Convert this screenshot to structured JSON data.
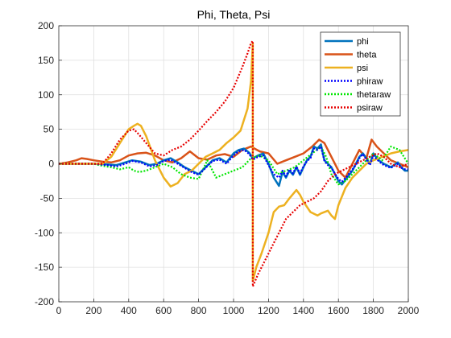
{
  "chart_data": {
    "type": "line",
    "title": "Phi, Theta, Psi",
    "xlabel": "",
    "ylabel": "",
    "xlim": [
      0,
      2000
    ],
    "ylim": [
      -200,
      200
    ],
    "xticks": [
      0,
      200,
      400,
      600,
      800,
      1000,
      1200,
      1400,
      1600,
      1800,
      2000
    ],
    "yticks": [
      -200,
      -150,
      -100,
      -50,
      0,
      50,
      100,
      150,
      200
    ],
    "grid": true,
    "legend_position": "top-right",
    "series": [
      {
        "name": "phi",
        "color": "#0072BD",
        "style": "solid",
        "x": [
          0,
          200,
          280,
          330,
          380,
          420,
          470,
          520,
          560,
          600,
          640,
          680,
          720,
          760,
          800,
          840,
          880,
          920,
          960,
          1000,
          1030,
          1060,
          1090,
          1110,
          1140,
          1170,
          1200,
          1230,
          1260,
          1280,
          1300,
          1320,
          1340,
          1360,
          1380,
          1400,
          1420,
          1440,
          1460,
          1480,
          1500,
          1520,
          1540,
          1560,
          1580,
          1600,
          1620,
          1650,
          1680,
          1700,
          1720,
          1740,
          1760,
          1780,
          1800,
          1830,
          1860,
          1900,
          1940,
          1960,
          1980,
          2000
        ],
        "y": [
          0,
          0,
          -1,
          -2,
          2,
          5,
          3,
          -2,
          0,
          5,
          8,
          2,
          -5,
          -10,
          -15,
          -5,
          5,
          8,
          2,
          15,
          20,
          22,
          16,
          8,
          12,
          15,
          0,
          -20,
          -32,
          -12,
          -20,
          -10,
          -16,
          -5,
          -16,
          -5,
          5,
          10,
          25,
          22,
          28,
          5,
          0,
          -5,
          -15,
          -25,
          -30,
          -20,
          -10,
          0,
          10,
          15,
          8,
          0,
          15,
          5,
          0,
          -5,
          2,
          -5,
          -10,
          -10
        ]
      },
      {
        "name": "theta",
        "color": "#D95319",
        "style": "solid",
        "x": [
          0,
          50,
          100,
          130,
          160,
          200,
          250,
          300,
          350,
          400,
          450,
          500,
          550,
          600,
          650,
          700,
          750,
          800,
          850,
          900,
          950,
          1000,
          1050,
          1100,
          1120,
          1150,
          1200,
          1250,
          1300,
          1350,
          1400,
          1450,
          1490,
          1520,
          1560,
          1600,
          1640,
          1680,
          1720,
          1760,
          1790,
          1820,
          1860,
          1900,
          1950,
          2000
        ],
        "y": [
          0,
          2,
          5,
          8,
          7,
          5,
          3,
          2,
          5,
          12,
          15,
          16,
          12,
          5,
          2,
          8,
          18,
          8,
          6,
          12,
          14,
          10,
          20,
          25,
          22,
          18,
          15,
          0,
          5,
          10,
          15,
          25,
          35,
          30,
          10,
          -10,
          -20,
          0,
          20,
          8,
          35,
          25,
          15,
          5,
          0,
          -5
        ]
      },
      {
        "name": "psi",
        "color": "#EDB120",
        "style": "solid",
        "x": [
          0,
          250,
          300,
          350,
          400,
          430,
          450,
          470,
          500,
          550,
          600,
          640,
          680,
          720,
          760,
          800,
          840,
          880,
          920,
          960,
          1000,
          1040,
          1080,
          1100,
          1110,
          1110,
          1130,
          1160,
          1200,
          1230,
          1260,
          1290,
          1320,
          1360,
          1380,
          1400,
          1440,
          1480,
          1500,
          1540,
          1560,
          1580,
          1600,
          1640,
          1680,
          1720,
          1760,
          1800,
          1850,
          1900,
          1950,
          2000
        ],
        "y": [
          0,
          0,
          10,
          30,
          50,
          55,
          58,
          55,
          40,
          5,
          -20,
          -33,
          -28,
          -15,
          -10,
          0,
          10,
          15,
          20,
          30,
          38,
          48,
          80,
          120,
          175,
          -170,
          -150,
          -130,
          -100,
          -70,
          -62,
          -60,
          -50,
          -38,
          -45,
          -55,
          -70,
          -75,
          -72,
          -68,
          -75,
          -80,
          -60,
          -35,
          -20,
          -10,
          0,
          5,
          10,
          15,
          18,
          20
        ]
      },
      {
        "name": "phiraw",
        "color": "#0000FF",
        "style": "dotted",
        "x": [
          0,
          200,
          280,
          330,
          380,
          420,
          470,
          520,
          560,
          600,
          640,
          680,
          720,
          760,
          800,
          840,
          880,
          920,
          960,
          1000,
          1030,
          1060,
          1090,
          1110,
          1140,
          1170,
          1200,
          1230,
          1260,
          1280,
          1300,
          1320,
          1340,
          1360,
          1380,
          1400,
          1420,
          1440,
          1460,
          1480,
          1500,
          1520,
          1540,
          1560,
          1580,
          1600,
          1620,
          1650,
          1680,
          1700,
          1720,
          1740,
          1760,
          1780,
          1800,
          1830,
          1860,
          1900,
          1940,
          1960,
          1980,
          2000
        ],
        "y": [
          0,
          0,
          -2,
          -4,
          0,
          4,
          2,
          -4,
          -2,
          4,
          6,
          0,
          -6,
          -12,
          -16,
          -6,
          4,
          6,
          0,
          12,
          18,
          20,
          14,
          6,
          10,
          12,
          -2,
          -15,
          -20,
          -10,
          -18,
          -8,
          -14,
          -4,
          -14,
          -4,
          4,
          8,
          22,
          20,
          25,
          4,
          -2,
          -6,
          -14,
          -22,
          -26,
          -18,
          -8,
          -2,
          8,
          14,
          6,
          -2,
          12,
          4,
          -2,
          -6,
          0,
          -6,
          -8,
          -8
        ]
      },
      {
        "name": "thetaraw",
        "color": "#00E600",
        "style": "dotted",
        "x": [
          0,
          200,
          250,
          300,
          350,
          400,
          430,
          460,
          500,
          550,
          600,
          650,
          700,
          750,
          800,
          850,
          900,
          950,
          1000,
          1050,
          1100,
          1150,
          1200,
          1250,
          1300,
          1350,
          1400,
          1450,
          1500,
          1530,
          1560,
          1600,
          1640,
          1680,
          1720,
          1760,
          1800,
          1850,
          1900,
          1950,
          2000
        ],
        "y": [
          0,
          0,
          -3,
          -5,
          -8,
          -5,
          -10,
          -12,
          -10,
          -5,
          0,
          -5,
          -15,
          -20,
          -22,
          5,
          -20,
          -15,
          -10,
          -5,
          8,
          12,
          5,
          -15,
          -10,
          -5,
          5,
          15,
          25,
          10,
          -15,
          -30,
          -25,
          -15,
          -5,
          5,
          15,
          5,
          25,
          20,
          0
        ]
      },
      {
        "name": "psiraw",
        "color": "#E60000",
        "style": "dotted",
        "x": [
          0,
          250,
          300,
          350,
          400,
          430,
          460,
          500,
          550,
          600,
          650,
          700,
          750,
          800,
          850,
          900,
          950,
          1000,
          1050,
          1080,
          1100,
          1110,
          1110,
          1140,
          1180,
          1220,
          1260,
          1300,
          1340,
          1380,
          1420,
          1460,
          1500,
          1540,
          1580,
          1620,
          1660,
          1700,
          1740,
          1780,
          1820,
          1860,
          1900,
          1950,
          2000
        ],
        "y": [
          0,
          0,
          15,
          35,
          48,
          50,
          42,
          30,
          15,
          12,
          20,
          25,
          35,
          48,
          62,
          75,
          90,
          110,
          140,
          160,
          175,
          178,
          -178,
          -160,
          -140,
          -120,
          -100,
          -80,
          -70,
          -60,
          -55,
          -50,
          -40,
          -25,
          -15,
          -10,
          -5,
          0,
          5,
          10,
          15,
          10,
          0,
          -5,
          0
        ]
      }
    ]
  }
}
